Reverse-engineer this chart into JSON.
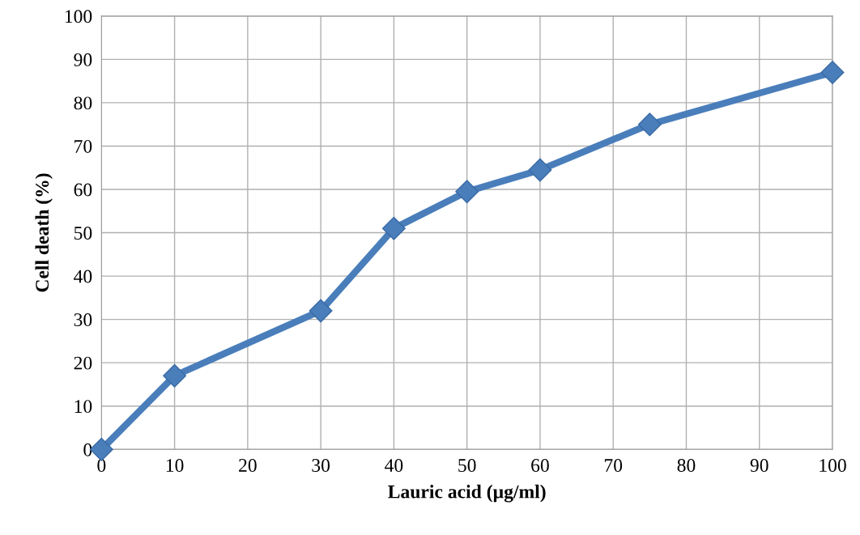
{
  "chart_data": {
    "type": "line",
    "xlabel": "Lauric acid (µg/ml)",
    "ylabel": "Cell death (%)",
    "x": [
      0,
      10,
      30,
      40,
      50,
      60,
      75,
      100
    ],
    "series": [
      {
        "color": "#4a7ebb",
        "values": [
          0,
          17,
          32,
          51,
          59.5,
          64.5,
          75,
          87
        ]
      }
    ],
    "xlim": [
      0,
      100
    ],
    "xticks": [
      0,
      10,
      20,
      30,
      40,
      50,
      60,
      70,
      80,
      90,
      100
    ],
    "ylim": [
      0,
      100
    ],
    "yticks": [
      0,
      10,
      20,
      30,
      40,
      50,
      60,
      70,
      80,
      90,
      100
    ],
    "grid": true,
    "marker": "diamond",
    "line_style": "solid"
  }
}
